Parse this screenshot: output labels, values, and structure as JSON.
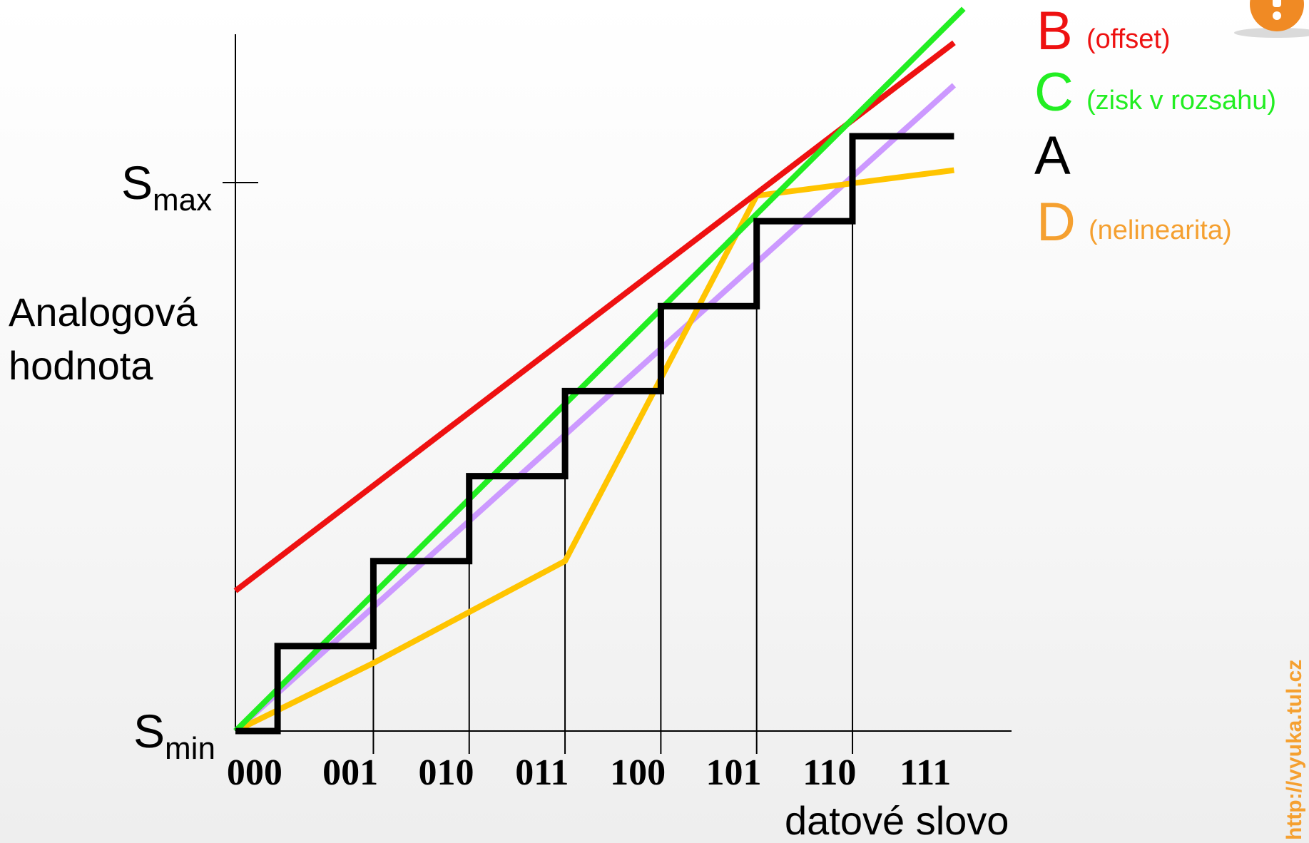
{
  "chart_data": {
    "type": "line",
    "ylabel_lines": [
      "Analogová",
      "hodnota"
    ],
    "xlabel": "datové slovo",
    "y_ticks": [
      {
        "base": "S",
        "sub": "max"
      },
      {
        "base": "S",
        "sub": "min"
      }
    ],
    "categories": [
      "000",
      "001",
      "010",
      "011",
      "100",
      "101",
      "110",
      "111"
    ],
    "xlim": [
      0,
      8.1
    ],
    "ylim": [
      0,
      8.2
    ],
    "smax_level": 7.0,
    "series": [
      {
        "name": "B",
        "desc": "(offset)",
        "color": "#ee1111",
        "kind": "line",
        "x": [
          0,
          7.5
        ],
        "y": [
          1.65,
          8.1
        ]
      },
      {
        "name": "C",
        "desc": "(zisk v rozsahu)",
        "color": "#22ee22",
        "kind": "line",
        "x": [
          0,
          7.6
        ],
        "y": [
          0,
          8.5
        ]
      },
      {
        "name": "A",
        "desc": "",
        "color": "#000000",
        "kind": "step",
        "x": [
          0,
          0.44,
          1.44,
          2.44,
          3.44,
          4.44,
          5.44,
          6.44,
          7.5
        ],
        "y": [
          0,
          1,
          2,
          3,
          4,
          5,
          6,
          7,
          7
        ]
      },
      {
        "name": "D",
        "desc": "(nelinearita)",
        "color": "#f5a030",
        "line_color": "#ffc400",
        "kind": "line",
        "x": [
          0,
          1.44,
          3.44,
          5.44,
          7.5
        ],
        "y": [
          0,
          0.8,
          2,
          6.3,
          6.6
        ]
      },
      {
        "name": "",
        "desc": "",
        "color": "#cc99ff",
        "kind": "line",
        "x": [
          0,
          7.5
        ],
        "y": [
          0,
          7.6
        ]
      }
    ]
  },
  "watermark": "http://vyuka.tul.cz"
}
